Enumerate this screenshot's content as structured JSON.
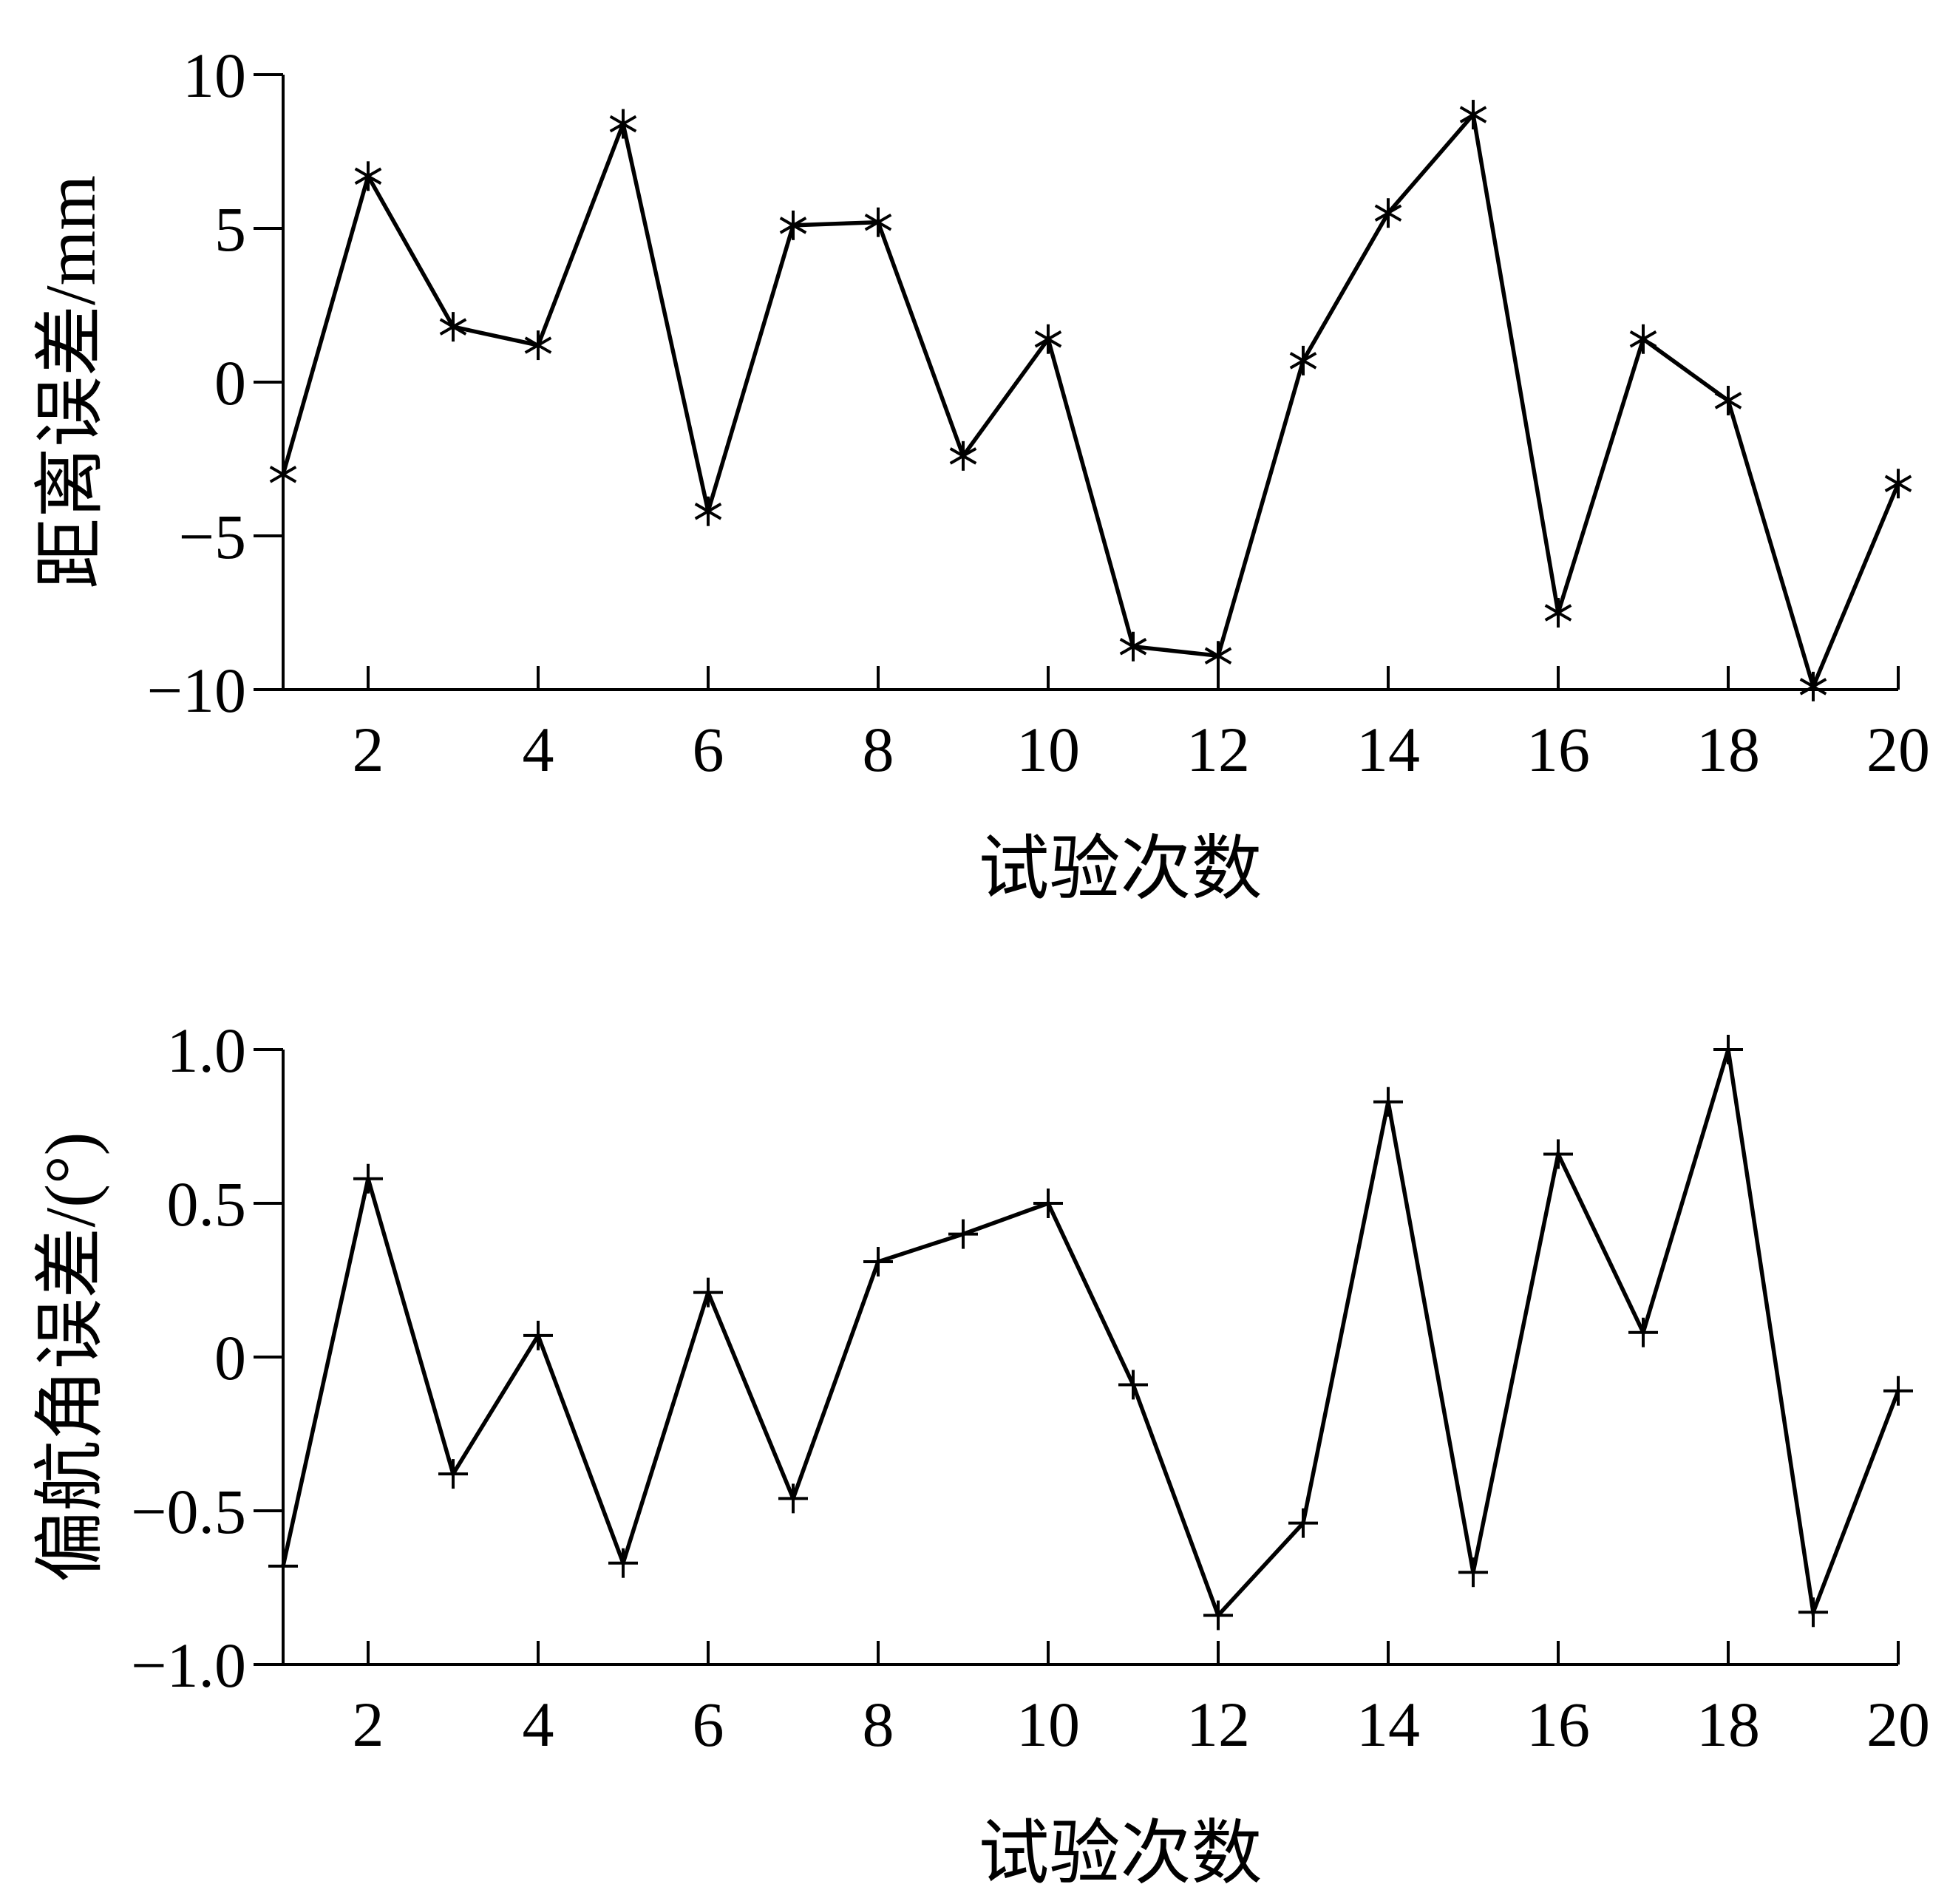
{
  "chart_data": [
    {
      "type": "line",
      "marker": "asterisk",
      "ylabel": "距离误差/mm",
      "xlabel": "试验次数",
      "xlim": [
        1,
        20
      ],
      "ylim": [
        -10,
        10
      ],
      "xticks": [
        2,
        4,
        6,
        8,
        10,
        12,
        14,
        16,
        18,
        20
      ],
      "yticks": [
        -10,
        -5,
        0,
        5,
        10
      ],
      "ytick_labels": [
        "−10",
        "−5",
        "0",
        "5",
        "10"
      ],
      "grid": false,
      "x": [
        1,
        2,
        3,
        4,
        5,
        6,
        7,
        8,
        9,
        10,
        11,
        12,
        13,
        14,
        15,
        16,
        17,
        18,
        19,
        20
      ],
      "y": [
        -3.0,
        6.7,
        1.8,
        1.2,
        8.4,
        -4.2,
        5.1,
        5.2,
        -2.4,
        1.4,
        -8.6,
        -8.9,
        0.7,
        5.5,
        8.7,
        -7.5,
        1.4,
        -0.6,
        -9.9,
        -3.3
      ]
    },
    {
      "type": "line",
      "marker": "plus",
      "ylabel": "偏航角误差/(°)",
      "xlabel": "试验次数",
      "xlim": [
        1,
        20
      ],
      "ylim": [
        -1.0,
        1.0
      ],
      "xticks": [
        2,
        4,
        6,
        8,
        10,
        12,
        14,
        16,
        18,
        20
      ],
      "yticks": [
        -1.0,
        -0.5,
        0,
        0.5,
        1.0
      ],
      "ytick_labels": [
        "−1.0",
        "−0.5",
        "0",
        "0.5",
        "1.0"
      ],
      "grid": false,
      "x": [
        1,
        2,
        3,
        4,
        5,
        6,
        7,
        8,
        9,
        10,
        11,
        12,
        13,
        14,
        15,
        16,
        17,
        18,
        19,
        20
      ],
      "y": [
        -0.68,
        0.58,
        -0.38,
        0.07,
        -0.67,
        0.21,
        -0.46,
        0.31,
        0.4,
        0.5,
        -0.09,
        -0.84,
        -0.54,
        0.83,
        -0.7,
        0.66,
        0.08,
        1.0,
        -0.83,
        -0.11
      ]
    }
  ]
}
